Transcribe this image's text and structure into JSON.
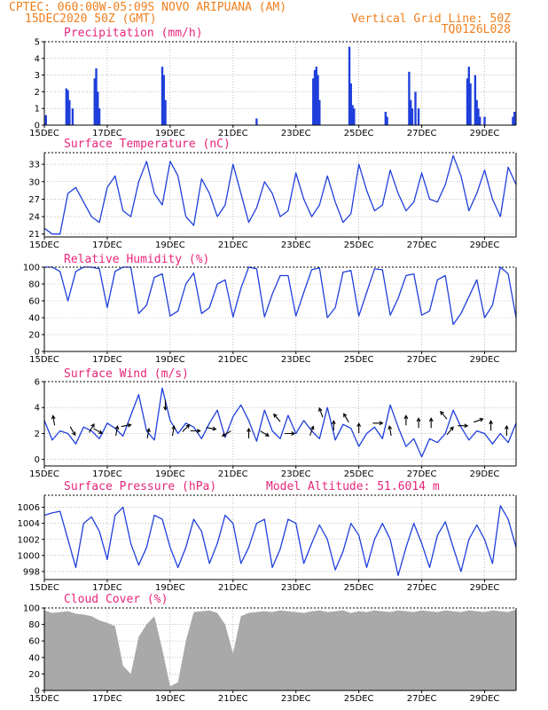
{
  "header": {
    "line1_left": "CPTEC:  060:00W-05:09S  NOVO ARIPUANA (AM)",
    "line2_left": "15DEC2020 50Z (GMT)",
    "line2_right": "Vertical Grid Line: 50Z",
    "line3_right": "TQ0126L028"
  },
  "colors": {
    "header": "#f07f1e",
    "panel_title": "#e8257a",
    "series_line": "#1f3fdb",
    "cloud_fill": "#a9a9a9"
  },
  "x_axis": {
    "tick_labels": [
      "15DEC",
      "17DEC",
      "19DEC",
      "21DEC",
      "23DEC",
      "25DEC",
      "27DEC",
      "29DEC"
    ],
    "tick_days": [
      15,
      17,
      19,
      21,
      23,
      25,
      27,
      29
    ],
    "range_days": [
      15,
      30
    ]
  },
  "chart_data": [
    {
      "type": "bar",
      "title": "Precipitation (mm/h)",
      "ylim": [
        0,
        5
      ],
      "yticks": [
        "0",
        "1",
        "2",
        "3",
        "4",
        "5"
      ],
      "grid": true,
      "x": [
        15.05,
        15.7,
        15.75,
        15.8,
        15.9,
        16.6,
        16.65,
        16.7,
        16.75,
        18.75,
        18.8,
        18.85,
        21.75,
        23.55,
        23.6,
        23.65,
        23.7,
        23.75,
        24.7,
        24.75,
        24.8,
        24.85,
        25.85,
        25.9,
        26.6,
        26.65,
        26.7,
        26.8,
        26.9,
        28.45,
        28.5,
        28.55,
        28.7,
        28.75,
        28.8,
        28.85,
        29.0,
        29.9,
        29.95
      ],
      "values": [
        0.6,
        2.2,
        2.1,
        1.5,
        1.0,
        2.8,
        3.4,
        2.0,
        1.0,
        3.5,
        3.0,
        1.5,
        0.4,
        2.8,
        3.3,
        3.5,
        3.0,
        1.5,
        4.7,
        2.5,
        1.2,
        1.0,
        0.8,
        0.5,
        3.2,
        1.5,
        1.0,
        2.0,
        1.0,
        2.8,
        3.5,
        2.5,
        3.0,
        1.5,
        1.0,
        0.5,
        0.5,
        0.5,
        0.8
      ]
    },
    {
      "type": "line",
      "title": "Surface Temperature (nC)",
      "ylim": [
        20.5,
        35
      ],
      "yticks": [
        "21",
        "24",
        "27",
        "30",
        "33"
      ],
      "grid": true,
      "x": [
        15.0,
        15.25,
        15.5,
        15.75,
        16.0,
        16.25,
        16.5,
        16.75,
        17.0,
        17.25,
        17.5,
        17.75,
        18.0,
        18.25,
        18.5,
        18.75,
        19.0,
        19.25,
        19.5,
        19.75,
        20.0,
        20.25,
        20.5,
        20.75,
        21.0,
        21.25,
        21.5,
        21.75,
        22.0,
        22.25,
        22.5,
        22.75,
        23.0,
        23.25,
        23.5,
        23.75,
        24.0,
        24.25,
        24.5,
        24.75,
        25.0,
        25.25,
        25.5,
        25.75,
        26.0,
        26.25,
        26.5,
        26.75,
        27.0,
        27.25,
        27.5,
        27.75,
        28.0,
        28.25,
        28.5,
        28.75,
        29.0,
        29.25,
        29.5,
        29.75,
        30.0
      ],
      "series": [
        {
          "values": [
            22.0,
            21.0,
            21.0,
            28.0,
            29.0,
            26.5,
            24.0,
            23.0,
            29.0,
            31.0,
            25.0,
            24.0,
            30.0,
            33.5,
            28.0,
            26.0,
            33.5,
            31.0,
            24.0,
            22.5,
            30.5,
            28.0,
            24.0,
            26.0,
            33.0,
            28.0,
            23.0,
            25.5,
            30.0,
            28.0,
            24.0,
            25.0,
            31.5,
            27.0,
            24.0,
            26.0,
            31.0,
            26.5,
            23.0,
            24.5,
            33.0,
            28.5,
            25.0,
            26.0,
            32.0,
            28.0,
            25.0,
            26.5,
            31.5,
            27.0,
            26.5,
            29.5,
            34.5,
            31.0,
            25.0,
            28.0,
            32.0,
            27.0,
            24.0,
            32.5,
            29.5
          ]
        }
      ]
    },
    {
      "type": "line",
      "title": "Relative Humidity (%)",
      "ylim": [
        0,
        100
      ],
      "yticks": [
        "0",
        "20",
        "40",
        "60",
        "80",
        "100"
      ],
      "grid": true,
      "x": [
        15.0,
        15.25,
        15.5,
        15.75,
        16.0,
        16.25,
        16.5,
        16.75,
        17.0,
        17.25,
        17.5,
        17.75,
        18.0,
        18.25,
        18.5,
        18.75,
        19.0,
        19.25,
        19.5,
        19.75,
        20.0,
        20.25,
        20.5,
        20.75,
        21.0,
        21.25,
        21.5,
        21.75,
        22.0,
        22.25,
        22.5,
        22.75,
        23.0,
        23.25,
        23.5,
        23.75,
        24.0,
        24.25,
        24.5,
        24.75,
        25.0,
        25.25,
        25.5,
        25.75,
        26.0,
        26.25,
        26.5,
        26.75,
        27.0,
        27.25,
        27.5,
        27.75,
        28.0,
        28.25,
        28.5,
        28.75,
        29.0,
        29.25,
        29.5,
        29.75,
        30.0
      ],
      "series": [
        {
          "values": [
            100.0,
            100.0,
            95.0,
            60.0,
            95.0,
            100.0,
            100.0,
            98.0,
            52.0,
            95.0,
            100.0,
            100.0,
            45.0,
            55.0,
            88.0,
            92.0,
            42.0,
            48.0,
            80.0,
            93.0,
            45.0,
            52.0,
            80.0,
            85.0,
            41.0,
            75.0,
            100.0,
            98.0,
            41.0,
            68.0,
            90.0,
            90.0,
            42.0,
            70.0,
            97.0,
            99.0,
            40.0,
            52.0,
            94.0,
            96.0,
            42.0,
            70.0,
            98.0,
            97.0,
            43.0,
            63.0,
            90.0,
            92.0,
            43.0,
            48.0,
            85.0,
            90.0,
            32.0,
            45.0,
            65.0,
            85.0,
            40.0,
            55.0,
            100.0,
            92.0,
            40.0
          ]
        }
      ]
    },
    {
      "type": "line",
      "title": "Surface Wind (m/s)",
      "ylim": [
        -0.5,
        6
      ],
      "yticks": [
        "0",
        "2",
        "4",
        "6"
      ],
      "grid": true,
      "x": [
        15.0,
        15.25,
        15.5,
        15.75,
        16.0,
        16.25,
        16.5,
        16.75,
        17.0,
        17.25,
        17.5,
        17.75,
        18.0,
        18.25,
        18.5,
        18.75,
        19.0,
        19.25,
        19.5,
        19.75,
        20.0,
        20.25,
        20.5,
        20.75,
        21.0,
        21.25,
        21.5,
        21.75,
        22.0,
        22.25,
        22.5,
        22.75,
        23.0,
        23.25,
        23.5,
        23.75,
        24.0,
        24.25,
        24.5,
        24.75,
        25.0,
        25.25,
        25.5,
        25.75,
        26.0,
        26.25,
        26.5,
        26.75,
        27.0,
        27.25,
        27.5,
        27.75,
        28.0,
        28.25,
        28.5,
        28.75,
        29.0,
        29.25,
        29.5,
        29.75,
        30.0
      ],
      "series": [
        {
          "values": [
            3.0,
            1.5,
            2.2,
            2.0,
            1.2,
            2.5,
            2.2,
            1.6,
            2.8,
            2.4,
            1.8,
            3.4,
            5.0,
            2.2,
            1.5,
            5.5,
            3.0,
            2.0,
            2.8,
            2.5,
            1.6,
            2.8,
            3.8,
            1.7,
            3.3,
            4.2,
            3.0,
            1.4,
            3.8,
            2.2,
            1.6,
            3.4,
            2.0,
            3.0,
            2.2,
            1.6,
            4.0,
            1.5,
            2.7,
            2.4,
            1.0,
            2.0,
            2.5,
            1.6,
            4.2,
            2.5,
            1.0,
            1.6,
            0.2,
            1.6,
            1.3,
            2.0,
            3.8,
            2.5,
            1.5,
            2.2,
            2.0,
            1.2,
            2.0,
            1.3,
            2.8
          ]
        }
      ],
      "wind_barbs": [
        {
          "x": 15.3,
          "y": 3.0,
          "dir_deg": 100
        },
        {
          "x": 15.9,
          "y": 2.2,
          "dir_deg": -60
        },
        {
          "x": 16.5,
          "y": 2.4,
          "dir_deg": 60
        },
        {
          "x": 16.7,
          "y": 2.2,
          "dir_deg": -30
        },
        {
          "x": 17.3,
          "y": 2.2,
          "dir_deg": 80
        },
        {
          "x": 17.6,
          "y": 2.6,
          "dir_deg": 10
        },
        {
          "x": 18.3,
          "y": 2.0,
          "dir_deg": 80
        },
        {
          "x": 18.85,
          "y": 4.2,
          "dir_deg": -90
        },
        {
          "x": 19.1,
          "y": 2.2,
          "dir_deg": 80
        },
        {
          "x": 19.5,
          "y": 2.4,
          "dir_deg": 45
        },
        {
          "x": 19.8,
          "y": 2.2,
          "dir_deg": 0
        },
        {
          "x": 20.3,
          "y": 2.4,
          "dir_deg": -10
        },
        {
          "x": 20.8,
          "y": 2.0,
          "dir_deg": 210
        },
        {
          "x": 21.5,
          "y": 2.0,
          "dir_deg": 90
        },
        {
          "x": 22.0,
          "y": 2.0,
          "dir_deg": -30
        },
        {
          "x": 22.4,
          "y": 3.2,
          "dir_deg": 130
        },
        {
          "x": 22.8,
          "y": 2.0,
          "dir_deg": 0
        },
        {
          "x": 23.5,
          "y": 2.2,
          "dir_deg": 70
        },
        {
          "x": 23.8,
          "y": 3.6,
          "dir_deg": 110
        },
        {
          "x": 24.2,
          "y": 2.6,
          "dir_deg": 90
        },
        {
          "x": 24.6,
          "y": 3.2,
          "dir_deg": 120
        },
        {
          "x": 25.0,
          "y": 2.4,
          "dir_deg": 90
        },
        {
          "x": 25.6,
          "y": 2.8,
          "dir_deg": 0
        },
        {
          "x": 26.0,
          "y": 2.2,
          "dir_deg": 100
        },
        {
          "x": 26.5,
          "y": 3.0,
          "dir_deg": 90
        },
        {
          "x": 26.9,
          "y": 2.8,
          "dir_deg": 90
        },
        {
          "x": 27.3,
          "y": 2.8,
          "dir_deg": 90
        },
        {
          "x": 27.7,
          "y": 3.4,
          "dir_deg": 130
        },
        {
          "x": 27.9,
          "y": 2.2,
          "dir_deg": 50
        },
        {
          "x": 28.3,
          "y": 2.6,
          "dir_deg": 0
        },
        {
          "x": 28.8,
          "y": 3.0,
          "dir_deg": 20
        },
        {
          "x": 29.2,
          "y": 2.6,
          "dir_deg": 90
        },
        {
          "x": 29.7,
          "y": 2.2,
          "dir_deg": 90
        }
      ]
    },
    {
      "type": "line",
      "title": "Surface Pressure (hPa)",
      "annotation": "Model Altitude: 51.6014 m",
      "ylim": [
        997,
        1007.5
      ],
      "yticks": [
        "998",
        "1000",
        "1002",
        "1004",
        "1006"
      ],
      "grid": true,
      "x": [
        15.0,
        15.25,
        15.5,
        15.75,
        16.0,
        16.25,
        16.5,
        16.75,
        17.0,
        17.25,
        17.5,
        17.75,
        18.0,
        18.25,
        18.5,
        18.75,
        19.0,
        19.25,
        19.5,
        19.75,
        20.0,
        20.25,
        20.5,
        20.75,
        21.0,
        21.25,
        21.5,
        21.75,
        22.0,
        22.25,
        22.5,
        22.75,
        23.0,
        23.25,
        23.5,
        23.75,
        24.0,
        24.25,
        24.5,
        24.75,
        25.0,
        25.25,
        25.5,
        25.75,
        26.0,
        26.25,
        26.5,
        26.75,
        27.0,
        27.25,
        27.5,
        27.75,
        28.0,
        28.25,
        28.5,
        28.75,
        29.0,
        29.25,
        29.5,
        29.75,
        30.0
      ],
      "series": [
        {
          "values": [
            1005.0,
            1005.3,
            1005.5,
            1002.0,
            998.5,
            1004.0,
            1004.8,
            1003.0,
            999.5,
            1005.0,
            1006.0,
            1001.5,
            998.8,
            1001.0,
            1005.0,
            1004.5,
            1001.0,
            998.5,
            1001.0,
            1004.5,
            1003.0,
            999.0,
            1001.5,
            1005.0,
            1004.0,
            999.0,
            1001.0,
            1004.0,
            1004.5,
            998.5,
            1000.8,
            1004.5,
            1004.0,
            999.0,
            1001.5,
            1003.8,
            1002.0,
            998.2,
            1000.5,
            1004.0,
            1002.5,
            998.5,
            1002.0,
            1004.0,
            1002.0,
            997.5,
            1001.0,
            1004.0,
            1001.5,
            998.5,
            1002.5,
            1004.2,
            1001.0,
            998.0,
            1002.0,
            1003.8,
            1002.0,
            999.0,
            1006.2,
            1004.5,
            1001.0
          ]
        }
      ]
    },
    {
      "type": "area",
      "title": "Cloud Cover (%)",
      "ylim": [
        0,
        100
      ],
      "yticks": [
        "0",
        "20",
        "40",
        "60",
        "80",
        "100"
      ],
      "grid": true,
      "x": [
        15.0,
        15.25,
        15.5,
        15.75,
        16.0,
        16.25,
        16.5,
        16.75,
        17.0,
        17.25,
        17.5,
        17.75,
        18.0,
        18.25,
        18.5,
        18.75,
        19.0,
        19.25,
        19.5,
        19.75,
        20.0,
        20.25,
        20.5,
        20.75,
        21.0,
        21.25,
        21.5,
        21.75,
        22.0,
        22.25,
        22.5,
        22.75,
        23.0,
        23.25,
        23.5,
        23.75,
        24.0,
        24.25,
        24.5,
        24.75,
        25.0,
        25.25,
        25.5,
        25.75,
        26.0,
        26.25,
        26.5,
        26.75,
        27.0,
        27.25,
        27.5,
        27.75,
        28.0,
        28.25,
        28.5,
        28.75,
        29.0,
        29.25,
        29.5,
        29.75,
        30.0
      ],
      "series": [
        {
          "values": [
            97.0,
            94.0,
            95.0,
            96.0,
            93.0,
            92.0,
            90.0,
            85.0,
            82.0,
            78.0,
            30.0,
            20.0,
            65.0,
            80.0,
            90.0,
            50.0,
            5.0,
            10.0,
            60.0,
            95.0,
            96.0,
            97.0,
            94.0,
            80.0,
            45.0,
            90.0,
            94.0,
            95.0,
            96.0,
            95.0,
            97.0,
            96.0,
            95.0,
            94.0,
            96.0,
            97.0,
            95.0,
            96.0,
            97.0,
            94.0,
            96.0,
            95.0,
            97.0,
            96.0,
            95.0,
            97.0,
            96.0,
            95.0,
            97.0,
            96.0,
            95.0,
            97.0,
            96.0,
            95.0,
            97.0,
            96.0,
            95.0,
            97.0,
            96.0,
            95.0,
            98.0
          ]
        }
      ]
    }
  ]
}
